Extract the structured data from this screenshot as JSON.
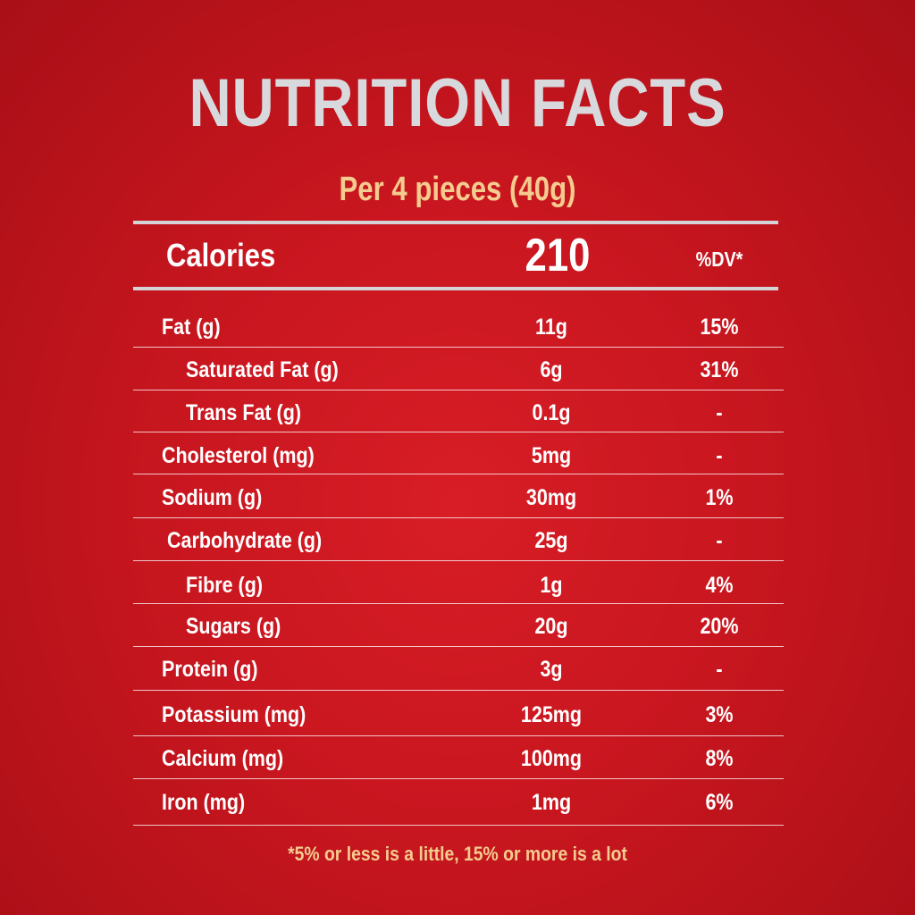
{
  "title": "NUTRITION FACTS",
  "serving": "Per 4 pieces (40g)",
  "calories": {
    "label": "Calories",
    "value": "210",
    "dv_header": "%DV*"
  },
  "nutrients": [
    {
      "name": "Fat (g)",
      "amount": "11g",
      "dv": "15%"
    },
    {
      "name": "Saturated Fat (g)",
      "amount": "6g",
      "dv": "31%"
    },
    {
      "name": "Trans Fat (g)",
      "amount": "0.1g",
      "dv": "-"
    },
    {
      "name": "Cholesterol (mg)",
      "amount": "5mg",
      "dv": "-"
    },
    {
      "name": "Sodium (g)",
      "amount": "30mg",
      "dv": "1%"
    },
    {
      "name": "Carbohydrate (g)",
      "amount": "25g",
      "dv": "-"
    },
    {
      "name": "Fibre (g)",
      "amount": "1g",
      "dv": "4%"
    },
    {
      "name": "Sugars (g)",
      "amount": "20g",
      "dv": "20%"
    },
    {
      "name": "Protein (g)",
      "amount": "3g",
      "dv": "-"
    },
    {
      "name": "Potassium (mg)",
      "amount": "125mg",
      "dv": "3%"
    },
    {
      "name": "Calcium (mg)",
      "amount": "100mg",
      "dv": "8%"
    },
    {
      "name": "Iron (mg)",
      "amount": "1mg",
      "dv": "6%"
    }
  ],
  "footnote": "*5% or less is a little, 15% or more is a lot",
  "colors": {
    "background": "#c8161f",
    "title": "#d8d9dc",
    "accent": "#f4cc8f",
    "text": "#ffffff"
  }
}
